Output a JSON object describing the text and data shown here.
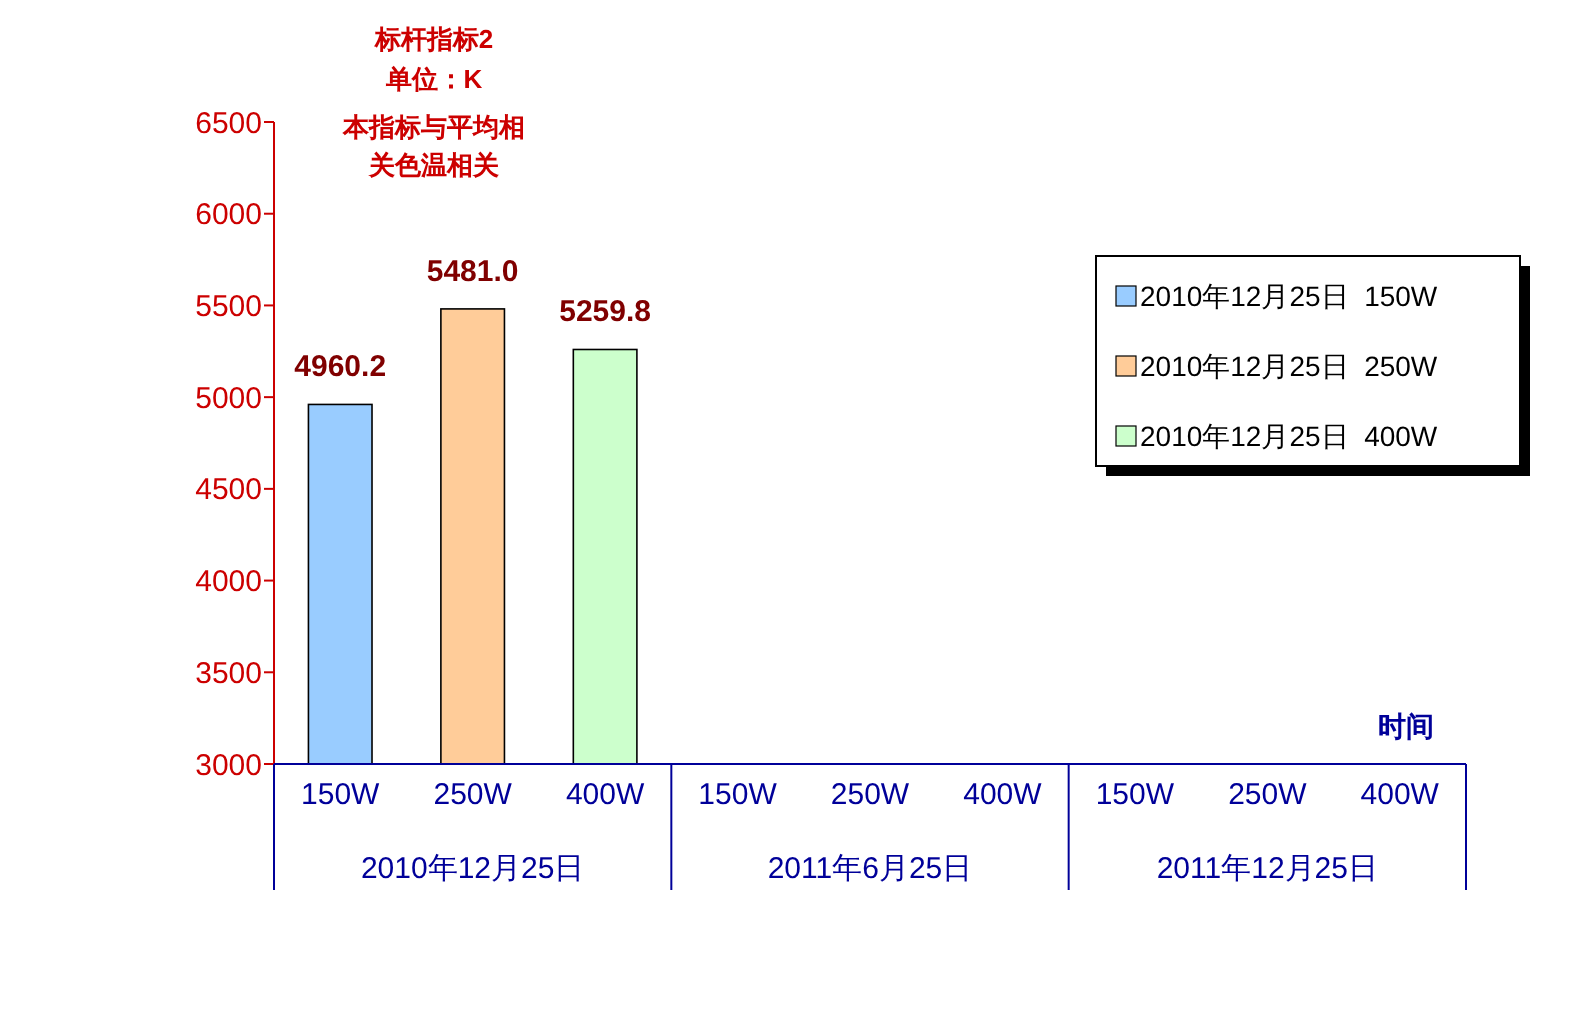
{
  "chart_data": {
    "type": "bar",
    "title": "标杆指标2",
    "subtitle": "单位：K",
    "xlabel": "时间",
    "annotations": [
      "本指标与平均相关色温相关",
      "2010年12月25日",
      "2011年6月25日",
      "2011年12月25日"
    ],
    "categories": [
      "150W",
      "250W",
      "400W",
      "150W",
      "250W",
      "400W",
      "150W",
      "250W",
      "400W"
    ],
    "series": [
      {
        "name": "2010年12月25日  150W",
        "color": "#99ccff",
        "values": [
          4960.2,
          null,
          null,
          null,
          null,
          null,
          null,
          null,
          null
        ],
        "value_labels": [
          "4960.2",
          null,
          null,
          null,
          null,
          null,
          null,
          null,
          null
        ]
      },
      {
        "name": "2010年12月25日  250W",
        "color": "#ffcc99",
        "values": [
          null,
          5481.0,
          null,
          null,
          null,
          null,
          null,
          null,
          null
        ],
        "value_labels": [
          null,
          "5481.0",
          null,
          null,
          null,
          null,
          null,
          null,
          null
        ]
      },
      {
        "name": "2010年12月25日  400W",
        "color": "#ccffcc",
        "values": [
          null,
          null,
          5259.8,
          null,
          null,
          null,
          null,
          null,
          null
        ],
        "value_labels": [
          null,
          null,
          "5259.8",
          null,
          null,
          null,
          null,
          null,
          null
        ]
      }
    ],
    "ylim": [
      3000,
      6500
    ],
    "yticks": [
      3000,
      3500,
      4000,
      4500,
      5000,
      5500,
      6000,
      6500
    ],
    "grid": false,
    "legend": "top right"
  }
}
